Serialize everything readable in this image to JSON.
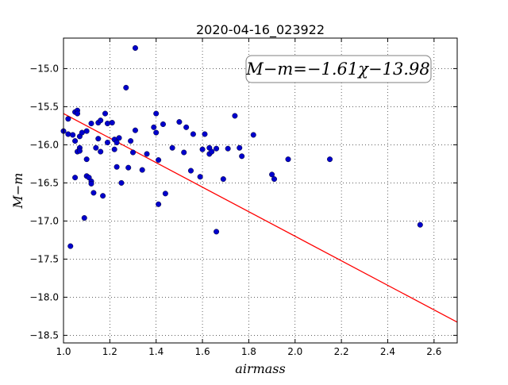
{
  "chart_data": {
    "type": "scatter",
    "title": "2020-04-16_023922",
    "xlabel": "airmass",
    "ylabel": "M−m",
    "xlim": [
      1.0,
      2.7
    ],
    "ylim": [
      -18.6,
      -14.6
    ],
    "y_inverted": true,
    "grid": true,
    "grid_style": "dotted",
    "x_ticks": [
      "1.0",
      "1.2",
      "1.4",
      "1.6",
      "1.8",
      "2.0",
      "2.2",
      "2.4",
      "2.6"
    ],
    "y_ticks": [
      "−15.0",
      "−15.5",
      "−16.0",
      "−16.5",
      "−17.0",
      "−17.5",
      "−18.0",
      "−18.5"
    ],
    "annotation": "M−m=−1.61χ−13.98",
    "fit": {
      "slope": -1.61,
      "intercept": -13.98,
      "color": "#ff0000"
    },
    "point_color": "#0000cc",
    "points": [
      {
        "x": 1.0,
        "y": -15.82
      },
      {
        "x": 1.02,
        "y": -15.66
      },
      {
        "x": 1.02,
        "y": -15.86
      },
      {
        "x": 1.03,
        "y": -17.33
      },
      {
        "x": 1.04,
        "y": -15.87
      },
      {
        "x": 1.05,
        "y": -16.43
      },
      {
        "x": 1.05,
        "y": -15.95
      },
      {
        "x": 1.05,
        "y": -15.57
      },
      {
        "x": 1.06,
        "y": -15.55
      },
      {
        "x": 1.06,
        "y": -15.59
      },
      {
        "x": 1.06,
        "y": -16.09
      },
      {
        "x": 1.07,
        "y": -16.04
      },
      {
        "x": 1.07,
        "y": -16.08
      },
      {
        "x": 1.07,
        "y": -15.89
      },
      {
        "x": 1.08,
        "y": -15.84
      },
      {
        "x": 1.09,
        "y": -16.96
      },
      {
        "x": 1.1,
        "y": -16.41
      },
      {
        "x": 1.1,
        "y": -16.19
      },
      {
        "x": 1.1,
        "y": -15.82
      },
      {
        "x": 1.11,
        "y": -16.43
      },
      {
        "x": 1.12,
        "y": -16.48
      },
      {
        "x": 1.12,
        "y": -16.51
      },
      {
        "x": 1.12,
        "y": -15.72
      },
      {
        "x": 1.13,
        "y": -16.63
      },
      {
        "x": 1.14,
        "y": -16.04
      },
      {
        "x": 1.15,
        "y": -15.92
      },
      {
        "x": 1.15,
        "y": -15.71
      },
      {
        "x": 1.16,
        "y": -16.09
      },
      {
        "x": 1.16,
        "y": -15.68
      },
      {
        "x": 1.17,
        "y": -16.67
      },
      {
        "x": 1.18,
        "y": -15.59
      },
      {
        "x": 1.19,
        "y": -15.72
      },
      {
        "x": 1.19,
        "y": -15.97
      },
      {
        "x": 1.21,
        "y": -15.71
      },
      {
        "x": 1.22,
        "y": -15.93
      },
      {
        "x": 1.22,
        "y": -16.06
      },
      {
        "x": 1.23,
        "y": -15.97
      },
      {
        "x": 1.23,
        "y": -16.29
      },
      {
        "x": 1.24,
        "y": -15.91
      },
      {
        "x": 1.25,
        "y": -16.5
      },
      {
        "x": 1.27,
        "y": -15.25
      },
      {
        "x": 1.28,
        "y": -16.3
      },
      {
        "x": 1.29,
        "y": -15.95
      },
      {
        "x": 1.3,
        "y": -16.1
      },
      {
        "x": 1.31,
        "y": -15.81
      },
      {
        "x": 1.31,
        "y": -14.73
      },
      {
        "x": 1.34,
        "y": -16.33
      },
      {
        "x": 1.36,
        "y": -16.12
      },
      {
        "x": 1.39,
        "y": -15.77
      },
      {
        "x": 1.4,
        "y": -15.84
      },
      {
        "x": 1.4,
        "y": -15.59
      },
      {
        "x": 1.41,
        "y": -16.2
      },
      {
        "x": 1.41,
        "y": -16.78
      },
      {
        "x": 1.43,
        "y": -15.73
      },
      {
        "x": 1.44,
        "y": -16.64
      },
      {
        "x": 1.47,
        "y": -16.04
      },
      {
        "x": 1.5,
        "y": -15.7
      },
      {
        "x": 1.52,
        "y": -16.1
      },
      {
        "x": 1.53,
        "y": -15.77
      },
      {
        "x": 1.55,
        "y": -16.34
      },
      {
        "x": 1.56,
        "y": -15.86
      },
      {
        "x": 1.59,
        "y": -16.42
      },
      {
        "x": 1.6,
        "y": -16.06
      },
      {
        "x": 1.61,
        "y": -15.86
      },
      {
        "x": 1.63,
        "y": -16.04
      },
      {
        "x": 1.63,
        "y": -16.12
      },
      {
        "x": 1.64,
        "y": -16.09
      },
      {
        "x": 1.66,
        "y": -16.05
      },
      {
        "x": 1.66,
        "y": -17.14
      },
      {
        "x": 1.69,
        "y": -16.45
      },
      {
        "x": 1.71,
        "y": -16.05
      },
      {
        "x": 1.74,
        "y": -15.62
      },
      {
        "x": 1.76,
        "y": -16.04
      },
      {
        "x": 1.77,
        "y": -16.15
      },
      {
        "x": 1.82,
        "y": -15.87
      },
      {
        "x": 1.9,
        "y": -16.39
      },
      {
        "x": 1.91,
        "y": -16.45
      },
      {
        "x": 1.97,
        "y": -16.19
      },
      {
        "x": 2.15,
        "y": -16.19
      },
      {
        "x": 2.54,
        "y": -17.05
      }
    ]
  }
}
